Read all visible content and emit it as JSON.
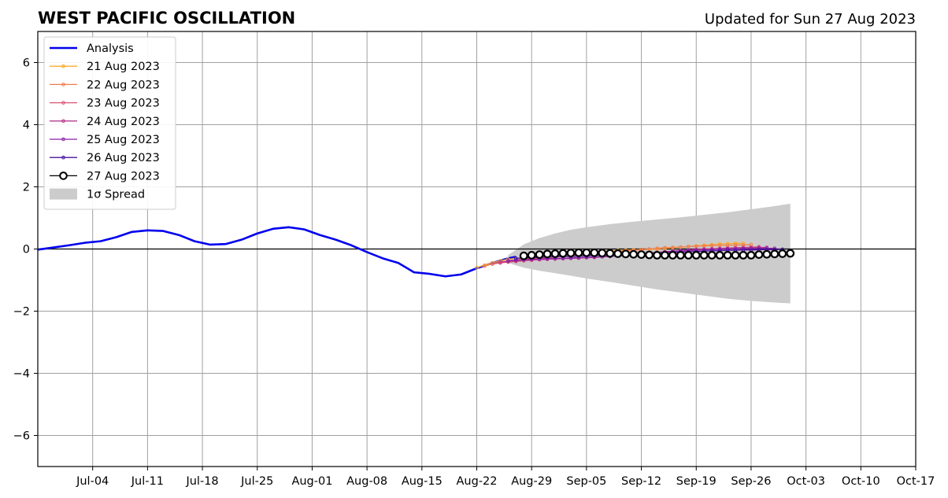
{
  "chart_data": {
    "type": "line",
    "title": "WEST PACIFIC OSCILLATION",
    "subtitle": "Updated for Sun 27 Aug 2023",
    "xlabel": "",
    "ylabel": "",
    "x_range": [
      "2023-06-27",
      "2023-10-17"
    ],
    "ylim": [
      -7,
      7
    ],
    "y_ticks": [
      6,
      4,
      2,
      0,
      -2,
      -4,
      -6
    ],
    "y_tick_labels": [
      "6",
      "4",
      "2",
      "0",
      "−2",
      "−4",
      "−6"
    ],
    "x_ticks": [
      {
        "date": "2023-07-04",
        "label": "Jul-04"
      },
      {
        "date": "2023-07-11",
        "label": "Jul-11"
      },
      {
        "date": "2023-07-18",
        "label": "Jul-18"
      },
      {
        "date": "2023-07-25",
        "label": "Jul-25"
      },
      {
        "date": "2023-08-01",
        "label": "Aug-01"
      },
      {
        "date": "2023-08-08",
        "label": "Aug-08"
      },
      {
        "date": "2023-08-15",
        "label": "Aug-15"
      },
      {
        "date": "2023-08-22",
        "label": "Aug-22"
      },
      {
        "date": "2023-08-29",
        "label": "Aug-29"
      },
      {
        "date": "2023-09-05",
        "label": "Sep-05"
      },
      {
        "date": "2023-09-12",
        "label": "Sep-12"
      },
      {
        "date": "2023-09-19",
        "label": "Sep-19"
      },
      {
        "date": "2023-09-26",
        "label": "Sep-26"
      },
      {
        "date": "2023-10-03",
        "label": "Oct-03"
      },
      {
        "date": "2023-10-10",
        "label": "Oct-10"
      },
      {
        "date": "2023-10-17",
        "label": "Oct-17"
      }
    ],
    "grid": true,
    "legend_position": "top-left",
    "analysis": {
      "name": "Analysis",
      "color": "#0000ee",
      "x": [
        "2023-06-27",
        "2023-06-29",
        "2023-07-01",
        "2023-07-03",
        "2023-07-05",
        "2023-07-07",
        "2023-07-09",
        "2023-07-11",
        "2023-07-13",
        "2023-07-15",
        "2023-07-17",
        "2023-07-19",
        "2023-07-21",
        "2023-07-23",
        "2023-07-25",
        "2023-07-27",
        "2023-07-29",
        "2023-07-31",
        "2023-08-02",
        "2023-08-04",
        "2023-08-06",
        "2023-08-08",
        "2023-08-10",
        "2023-08-12",
        "2023-08-14",
        "2023-08-16",
        "2023-08-18",
        "2023-08-20",
        "2023-08-22",
        "2023-08-24",
        "2023-08-26",
        "2023-08-27"
      ],
      "y": [
        -0.02,
        0.05,
        0.12,
        0.2,
        0.25,
        0.38,
        0.55,
        0.6,
        0.58,
        0.45,
        0.25,
        0.14,
        0.16,
        0.3,
        0.5,
        0.65,
        0.7,
        0.63,
        0.45,
        0.3,
        0.12,
        -0.1,
        -0.3,
        -0.45,
        -0.75,
        -0.8,
        -0.88,
        -0.82,
        -0.62,
        -0.45,
        -0.3,
        -0.25
      ]
    },
    "forecasts": [
      {
        "name": "21 Aug 2023",
        "color": "#f9a92e",
        "start": "2023-08-22",
        "y": [
          -0.6,
          -0.52,
          -0.44,
          -0.38,
          -0.33,
          -0.3,
          -0.28,
          -0.27,
          -0.26,
          -0.25,
          -0.22,
          -0.2,
          -0.17,
          -0.15,
          -0.12,
          -0.1,
          -0.08,
          -0.06,
          -0.05,
          -0.04,
          -0.03,
          -0.02,
          -0.01,
          0,
          0.02,
          0.04,
          0.06,
          0.08,
          0.1,
          0.12,
          0.14,
          0.16,
          0.17,
          0.18,
          0.18
        ]
      },
      {
        "name": "22 Aug 2023",
        "color": "#f07d4a",
        "start": "2023-08-23",
        "y": [
          -0.55,
          -0.48,
          -0.42,
          -0.38,
          -0.35,
          -0.33,
          -0.31,
          -0.3,
          -0.28,
          -0.26,
          -0.24,
          -0.22,
          -0.2,
          -0.18,
          -0.16,
          -0.13,
          -0.1,
          -0.08,
          -0.06,
          -0.04,
          -0.02,
          0,
          0.02,
          0.04,
          0.05,
          0.06,
          0.08,
          0.09,
          0.1,
          0.11,
          0.12,
          0.12,
          0.13,
          0.13,
          0.14
        ]
      },
      {
        "name": "23 Aug 2023",
        "color": "#dc5272",
        "start": "2023-08-24",
        "y": [
          -0.48,
          -0.45,
          -0.42,
          -0.4,
          -0.38,
          -0.36,
          -0.34,
          -0.33,
          -0.32,
          -0.31,
          -0.3,
          -0.29,
          -0.28,
          -0.27,
          -0.25,
          -0.23,
          -0.21,
          -0.19,
          -0.17,
          -0.15,
          -0.13,
          -0.11,
          -0.09,
          -0.07,
          -0.05,
          -0.03,
          -0.01,
          0,
          0.01,
          0.02,
          0.03,
          0.04,
          0.05,
          0.06,
          0.07
        ]
      },
      {
        "name": "24 Aug 2023",
        "color": "#b5378f",
        "start": "2023-08-25",
        "y": [
          -0.42,
          -0.4,
          -0.38,
          -0.36,
          -0.35,
          -0.34,
          -0.33,
          -0.32,
          -0.31,
          -0.3,
          -0.29,
          -0.28,
          -0.27,
          -0.25,
          -0.23,
          -0.21,
          -0.19,
          -0.17,
          -0.15,
          -0.13,
          -0.11,
          -0.09,
          -0.07,
          -0.05,
          -0.03,
          -0.02,
          -0.01,
          0,
          0.01,
          0.02,
          0.03,
          0.04,
          0.04,
          0.05,
          0.05
        ]
      },
      {
        "name": "25 Aug 2023",
        "color": "#8a1fa8",
        "start": "2023-08-26",
        "y": [
          -0.38,
          -0.36,
          -0.34,
          -0.33,
          -0.32,
          -0.31,
          -0.3,
          -0.3,
          -0.29,
          -0.28,
          -0.27,
          -0.26,
          -0.25,
          -0.24,
          -0.22,
          -0.2,
          -0.18,
          -0.16,
          -0.14,
          -0.12,
          -0.1,
          -0.08,
          -0.06,
          -0.05,
          -0.04,
          -0.03,
          -0.02,
          -0.01,
          0,
          0,
          0.01,
          0.01,
          0.02,
          0.02,
          0.02
        ]
      },
      {
        "name": "26 Aug 2023",
        "color": "#4a11a0",
        "start": "2023-08-27",
        "y": [
          -0.3,
          -0.29,
          -0.28,
          -0.27,
          -0.26,
          -0.25,
          -0.24,
          -0.24,
          -0.23,
          -0.22,
          -0.21,
          -0.2,
          -0.19,
          -0.18,
          -0.17,
          -0.16,
          -0.15,
          -0.14,
          -0.13,
          -0.12,
          -0.11,
          -0.1,
          -0.09,
          -0.08,
          -0.07,
          -0.06,
          -0.05,
          -0.04,
          -0.04,
          -0.03,
          -0.03,
          -0.02,
          -0.02,
          -0.02,
          -0.01
        ]
      },
      {
        "name": "27 Aug 2023",
        "color": "#000000",
        "start": "2023-08-28",
        "y": [
          -0.22,
          -0.2,
          -0.18,
          -0.16,
          -0.15,
          -0.14,
          -0.13,
          -0.12,
          -0.12,
          -0.12,
          -0.13,
          -0.14,
          -0.15,
          -0.16,
          -0.17,
          -0.18,
          -0.19,
          -0.2,
          -0.2,
          -0.2,
          -0.2,
          -0.2,
          -0.2,
          -0.2,
          -0.2,
          -0.2,
          -0.2,
          -0.2,
          -0.2,
          -0.2,
          -0.18,
          -0.17,
          -0.16,
          -0.15,
          -0.14
        ]
      }
    ],
    "spread": {
      "name": "1σ Spread",
      "color": "#cccccc",
      "x": [
        "2023-08-26",
        "2023-08-28",
        "2023-08-30",
        "2023-09-01",
        "2023-09-03",
        "2023-09-05",
        "2023-09-08",
        "2023-09-11",
        "2023-09-14",
        "2023-09-17",
        "2023-09-20",
        "2023-09-23",
        "2023-09-26",
        "2023-09-29",
        "2023-10-01"
      ],
      "upper": [
        -0.2,
        0.15,
        0.35,
        0.5,
        0.62,
        0.7,
        0.8,
        0.88,
        0.95,
        1.02,
        1.1,
        1.18,
        1.28,
        1.38,
        1.46
      ],
      "lower": [
        -0.45,
        -0.6,
        -0.7,
        -0.78,
        -0.86,
        -0.95,
        -1.06,
        -1.18,
        -1.3,
        -1.4,
        -1.5,
        -1.6,
        -1.67,
        -1.72,
        -1.75
      ]
    }
  }
}
